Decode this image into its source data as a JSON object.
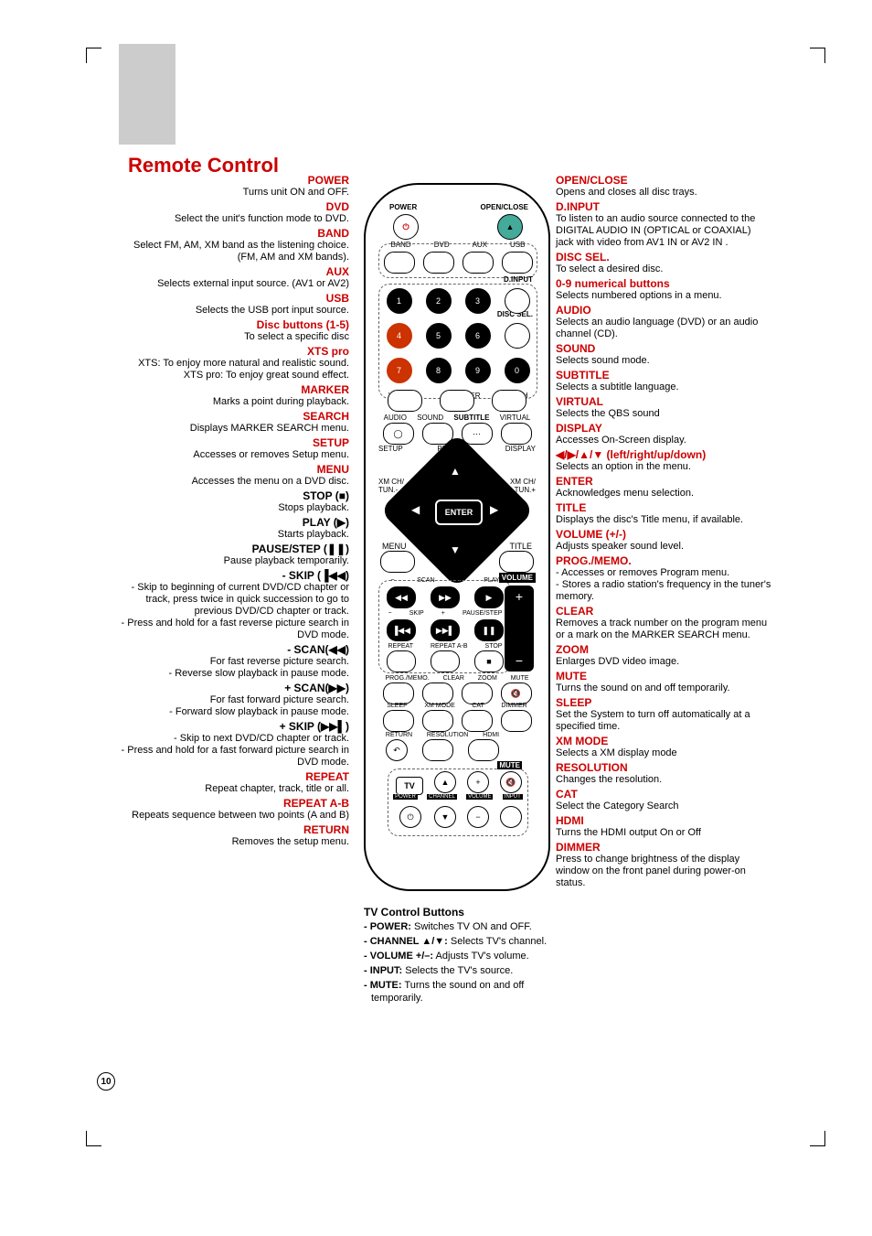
{
  "title": "Remote Control",
  "page_number": "10",
  "left": [
    {
      "h": "POWER",
      "d": "Turns unit ON and OFF.",
      "red": true
    },
    {
      "h": "DVD",
      "d": "Select the unit's function mode to DVD.",
      "red": true
    },
    {
      "h": "BAND",
      "d": "Select FM, AM, XM band as the listening choice. (FM, AM and XM bands).",
      "red": true
    },
    {
      "h": "AUX",
      "d": "Selects external input source. (AV1 or AV2)",
      "red": true
    },
    {
      "h": "USB",
      "d": "Selects the USB port input source.",
      "red": true
    },
    {
      "h": "Disc buttons (1-5)",
      "d": "To select a specific disc",
      "red": true
    },
    {
      "h": "XTS pro",
      "d": "XTS: To enjoy more natural and realistic sound.\nXTS pro: To enjoy great sound effect.",
      "red": true
    },
    {
      "h": "MARKER",
      "d": "Marks a point during playback.",
      "red": true
    },
    {
      "h": "SEARCH",
      "d": "Displays MARKER SEARCH menu.",
      "red": true
    },
    {
      "h": "SETUP",
      "d": "Accesses or removes Setup menu.",
      "red": true
    },
    {
      "h": "MENU",
      "d": "Accesses the menu on a DVD disc.",
      "red": true
    },
    {
      "h": "STOP (■)",
      "d": "Stops playback.",
      "red": false
    },
    {
      "h": "PLAY (▶)",
      "d": "Starts playback.",
      "red": false
    },
    {
      "h": "PAUSE/STEP (❚❚)",
      "d": "Pause playback temporarily.",
      "red": false
    },
    {
      "h": "- SKIP (▐◀◀)",
      "d": "- Skip to beginning of current DVD/CD chapter or track, press twice in quick succession to go to previous DVD/CD chapter or track.\n- Press and hold for a fast reverse picture search in DVD mode.",
      "red": false
    },
    {
      "h": "- SCAN(◀◀)",
      "d": "For fast reverse picture search.\n- Reverse slow playback in pause mode.",
      "red": false
    },
    {
      "h": "+ SCAN(▶▶)",
      "d": "For fast forward picture search.\n- Forward slow playback in pause mode.",
      "red": false
    },
    {
      "h": "+ SKIP (▶▶▌)",
      "d": "- Skip to next DVD/CD chapter or track.\n- Press and hold for a fast forward picture search in DVD mode.",
      "red": false
    },
    {
      "h": "REPEAT",
      "d": "Repeat chapter, track, title or all.",
      "red": true
    },
    {
      "h": "REPEAT A-B",
      "d": "Repeats sequence between two points (A and B)",
      "red": true
    },
    {
      "h": "RETURN",
      "d": "Removes the setup menu.",
      "red": true
    }
  ],
  "right": [
    {
      "h": "OPEN/CLOSE",
      "d": "Opens and closes all disc trays."
    },
    {
      "h": "D.INPUT",
      "d": "To listen to an audio source connected to the DIGITAL AUDIO IN (OPTICAL or COAXIAL) jack with video from AV1 IN or AV2 IN ."
    },
    {
      "h": "DISC SEL.",
      "d": "To select a desired disc."
    },
    {
      "h": "0-9 numerical buttons",
      "d": "Selects numbered options in a menu."
    },
    {
      "h": "AUDIO",
      "d": "Selects an audio language (DVD) or an audio channel (CD)."
    },
    {
      "h": "SOUND",
      "d": "Selects sound mode."
    },
    {
      "h": "SUBTITLE",
      "d": "Selects a subtitle language."
    },
    {
      "h": "VIRTUAL",
      "d": "Selects the QBS sound"
    },
    {
      "h": "DISPLAY",
      "d": "Accesses On-Screen display."
    },
    {
      "h": "◀/▶/▲/▼ (left/right/up/down)",
      "d": "Selects an option in the menu."
    },
    {
      "h": "ENTER",
      "d": "Acknowledges menu selection."
    },
    {
      "h": "TITLE",
      "d": "Displays the disc's Title menu, if available."
    },
    {
      "h": "VOLUME (+/-)",
      "d": "Adjusts speaker sound level."
    },
    {
      "h": "PROG./MEMO.",
      "d": "- Accesses or removes Program menu.\n- Stores a radio station's frequency in the tuner's memory."
    },
    {
      "h": "CLEAR",
      "d": "Removes a track number on the program menu or a mark on the MARKER SEARCH menu."
    },
    {
      "h": "ZOOM",
      "d": "Enlarges DVD video image."
    },
    {
      "h": "MUTE",
      "d": "Turns the sound on and off temporarily."
    },
    {
      "h": "SLEEP",
      "d": "Set the System to turn off automatically at a specified time."
    },
    {
      "h": "XM MODE",
      "d": "Selects a XM display mode"
    },
    {
      "h": "RESOLUTION",
      "d": "Changes the resolution."
    },
    {
      "h": "CAT",
      "d": "Select the Category Search"
    },
    {
      "h": "HDMI",
      "d": "Turns the HDMI output On or Off"
    },
    {
      "h": "DIMMER",
      "d": "Press to change  brightness of the display window on the front panel during power-on status."
    }
  ],
  "center": {
    "title": "TV Control Buttons",
    "items": [
      {
        "b": "- POWER:",
        "t": " Switches TV ON and OFF."
      },
      {
        "b": "- CHANNEL ▲/▼:",
        "t": " Selects TV's channel."
      },
      {
        "b": "- VOLUME +/–:",
        "t": " Adjusts TV's volume."
      },
      {
        "b": "- INPUT:",
        "t": " Selects the TV's source."
      },
      {
        "b": "- MUTE:",
        "t": " Turns the sound on and off temporarily."
      }
    ]
  },
  "remote_labels": {
    "power": "POWER",
    "openclose": "OPEN/CLOSE",
    "band": "BAND",
    "dvd": "DVD",
    "aux": "AUX",
    "usb": "USB",
    "dinput": "D.INPUT",
    "discsel": "DISC SEL.",
    "xtspro": "XTS pro",
    "marker": "MARKER",
    "search": "SEARCH",
    "audio": "AUDIO",
    "sound": "SOUND",
    "subtitle": "SUBTITLE",
    "virtual": "VIRTUAL",
    "setup": "SETUP",
    "preset_p": "PRESET+",
    "display": "DISPLAY",
    "xmch_m": "XM CH/\nTUN.-",
    "xmch_p": "XM CH/\nTUN.+",
    "enter": "ENTER",
    "menu": "MENU",
    "title": "TITLE",
    "preset_m": "PRESET-",
    "scan": "SCAN",
    "play": "PLAY",
    "volume": "VOLUME",
    "skip": "SKIP",
    "pausestep": "PAUSE/STEP",
    "repeat": "REPEAT",
    "repeatab": "REPEAT A-B",
    "stop": "STOP",
    "progmemo": "PROG./MEMO.",
    "clear": "CLEAR",
    "zoom": "ZOOM",
    "mute": "MUTE",
    "sleep": "SLEEP",
    "xmmode": "XM MODE",
    "cat": "CAT",
    "dimmer": "DIMMER",
    "return": "RETURN",
    "resolution": "RESOLUTION",
    "hdmi": "HDMI",
    "tv": "TV",
    "mute2": "MUTE",
    "power2": "POWER",
    "channel": "CHANNEL",
    "volume2": "VOLUME",
    "input": "INPUT"
  }
}
